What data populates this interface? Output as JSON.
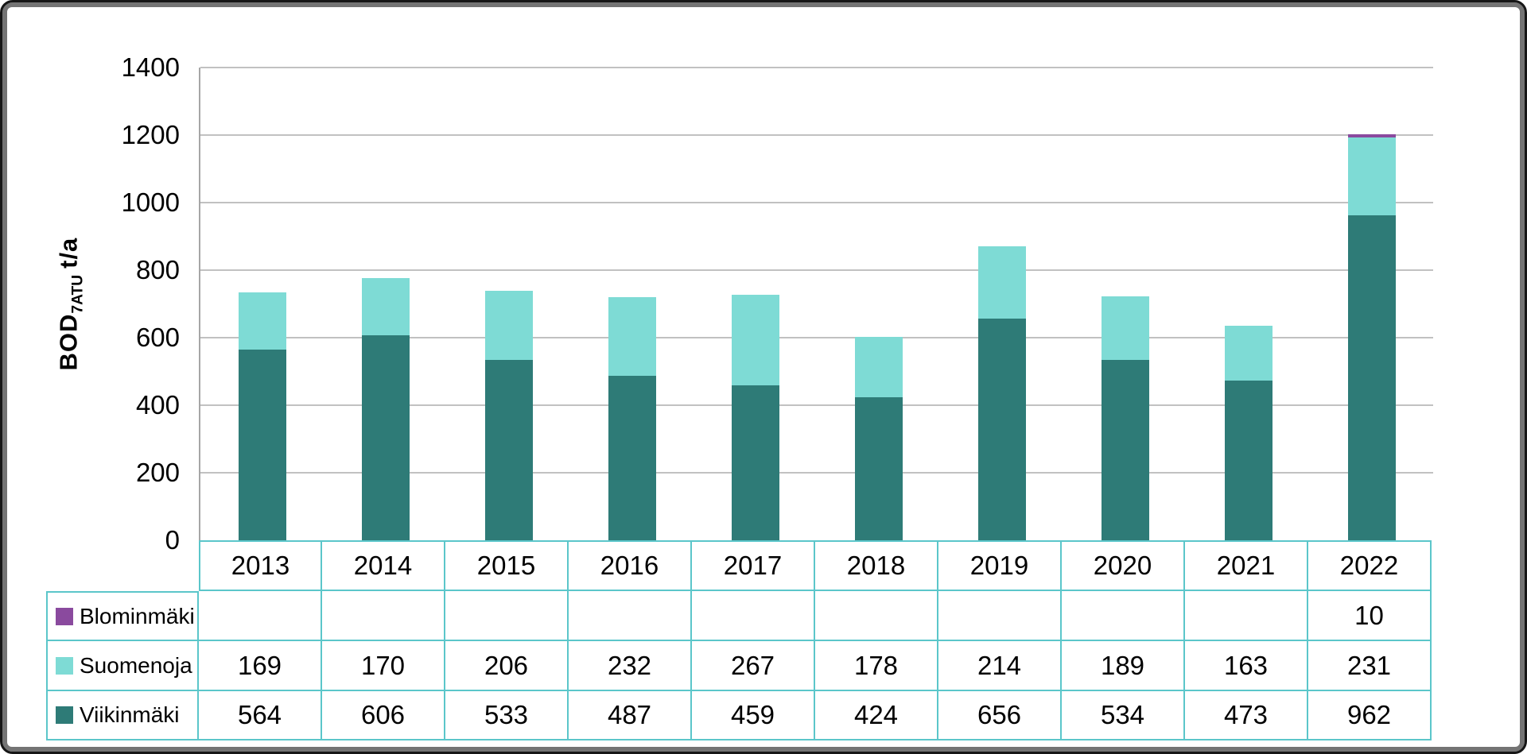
{
  "frame": {
    "outer_border_color": "#161616",
    "inner_border_color": "#747474",
    "background": "#ffffff"
  },
  "chart_data": {
    "type": "bar",
    "stacked": true,
    "title": "",
    "ylabel": {
      "base": "BOD",
      "subscript": "7ATU",
      "unit": "t/a"
    },
    "categories": [
      "2013",
      "2014",
      "2015",
      "2016",
      "2017",
      "2018",
      "2019",
      "2020",
      "2021",
      "2022"
    ],
    "series": [
      {
        "name": "Blominmäki",
        "color": "#8a4a9e",
        "values": [
          null,
          null,
          null,
          null,
          null,
          null,
          null,
          null,
          null,
          10
        ]
      },
      {
        "name": "Suomenoja",
        "color": "#7edbd5",
        "values": [
          169,
          170,
          206,
          232,
          267,
          178,
          214,
          189,
          163,
          231
        ]
      },
      {
        "name": "Viikinmäki",
        "color": "#2e7b77",
        "values": [
          564,
          606,
          533,
          487,
          459,
          424,
          656,
          534,
          473,
          962
        ]
      }
    ],
    "ylim": [
      0,
      1400
    ],
    "yticks": [
      0,
      200,
      400,
      600,
      800,
      1000,
      1200,
      1400
    ],
    "grid": true,
    "gridline_color": "#c1c1c1",
    "axis_line_color": "#a6a6a6",
    "table_border_color": "#5bc6ca",
    "text_color": "#000000",
    "legend_position": "table-left"
  }
}
